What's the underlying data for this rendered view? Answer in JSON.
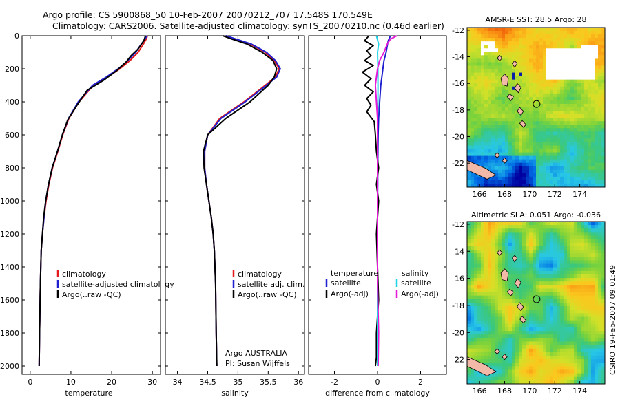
{
  "header": {
    "line1": "Argo profile: CS 5900868_50 10-Feb-2007 20070212_707 17.548S 170.549E",
    "line2": "Climatology: CARS2006. Satellite-adjusted climatology: synTS_20070210.nc (0.46d earlier)"
  },
  "side_note": "CSIRO 19-Feb-2007 09:01:49",
  "colors": {
    "climatology": "#e41a1c",
    "satellite": "#1f1fd0",
    "argo": "#000000",
    "sat_diff_s": "#22d3e6",
    "argo_diff_s": "#e619d8"
  },
  "chart_data": [
    {
      "type": "line",
      "id": "temperature",
      "xlabel": "temperature",
      "xlim": [
        -2,
        32
      ],
      "xticks": [
        0,
        10,
        20,
        30
      ],
      "ylim": [
        2050,
        0
      ],
      "yticks": [
        0,
        200,
        400,
        600,
        800,
        1000,
        1200,
        1400,
        1600,
        1800,
        2000
      ],
      "legend": [
        "climatology",
        "satellite-adjusted climatology",
        "Argo(..raw -QC)"
      ],
      "series": [
        {
          "name": "climatology",
          "x": [
            28.8,
            28.5,
            27.8,
            26.5,
            24.5,
            22.0,
            19.0,
            15.5,
            12.0,
            9.5,
            8.0,
            6.8,
            5.5,
            4.6,
            3.9,
            3.4,
            3.0,
            2.7,
            2.5,
            2.3,
            2.2
          ],
          "y": [
            0,
            20,
            50,
            100,
            150,
            200,
            250,
            300,
            400,
            500,
            600,
            700,
            800,
            900,
            1000,
            1100,
            1200,
            1300,
            1500,
            1800,
            2000
          ]
        },
        {
          "name": "satellite-adjusted climatology",
          "x": [
            28.6,
            28.2,
            27.3,
            25.9,
            24.0,
            21.6,
            18.7,
            15.3,
            11.8,
            9.4,
            7.9,
            6.7,
            5.4,
            4.5,
            3.8,
            3.4,
            3.0,
            2.7,
            2.5,
            2.3,
            2.2
          ],
          "y": [
            0,
            20,
            50,
            100,
            150,
            200,
            250,
            300,
            400,
            500,
            600,
            700,
            800,
            900,
            1000,
            1100,
            1200,
            1300,
            1500,
            1800,
            2000
          ]
        },
        {
          "name": "Argo(..raw -QC)",
          "x": [
            28.3,
            27.9,
            26.5,
            24.8,
            23.5,
            21.3,
            18.0,
            14.0,
            11.5,
            9.2,
            7.9,
            6.7,
            5.4,
            4.5,
            3.8,
            3.3,
            3.0,
            2.7,
            2.5,
            2.3,
            2.2
          ],
          "y": [
            0,
            30,
            80,
            120,
            160,
            210,
            270,
            330,
            420,
            510,
            600,
            700,
            800,
            900,
            1000,
            1100,
            1200,
            1300,
            1500,
            1800,
            2000
          ]
        }
      ]
    },
    {
      "type": "line",
      "id": "salinity",
      "xlabel": "salinity",
      "xlim": [
        33.8,
        36.1
      ],
      "xticks": [
        34,
        34.5,
        35,
        35.5,
        36
      ],
      "ylim": [
        2050,
        0
      ],
      "legend": [
        "climatology",
        "satellite adj. clim.",
        "Argo(..raw -QC)"
      ],
      "note": [
        "Argo AUSTRALIA",
        "PI: Susan Wijffels"
      ],
      "series": [
        {
          "name": "climatology",
          "x": [
            34.8,
            34.95,
            35.2,
            35.45,
            35.6,
            35.68,
            35.62,
            35.45,
            35.1,
            34.7,
            34.5,
            34.45,
            34.45,
            34.48,
            34.52,
            34.56,
            34.59,
            34.61,
            34.63,
            34.64,
            34.65
          ],
          "y": [
            0,
            20,
            50,
            100,
            150,
            200,
            250,
            300,
            400,
            500,
            600,
            700,
            800,
            900,
            1000,
            1100,
            1200,
            1300,
            1500,
            1800,
            2000
          ]
        },
        {
          "name": "satellite adj. clim.",
          "x": [
            34.8,
            34.97,
            35.22,
            35.47,
            35.62,
            35.7,
            35.64,
            35.47,
            35.12,
            34.72,
            34.5,
            34.45,
            34.45,
            34.48,
            34.52,
            34.56,
            34.59,
            34.61,
            34.63,
            34.64,
            34.65
          ],
          "y": [
            0,
            20,
            50,
            100,
            150,
            200,
            250,
            300,
            400,
            500,
            600,
            700,
            800,
            900,
            1000,
            1100,
            1200,
            1300,
            1500,
            1800,
            2000
          ]
        },
        {
          "name": "Argo(..raw -QC)",
          "x": [
            34.75,
            34.9,
            35.15,
            35.4,
            35.58,
            35.64,
            35.6,
            35.5,
            35.2,
            34.8,
            34.5,
            34.43,
            34.44,
            34.48,
            34.52,
            34.56,
            34.59,
            34.61,
            34.63,
            34.64,
            34.65
          ],
          "y": [
            0,
            20,
            50,
            100,
            150,
            200,
            250,
            300,
            400,
            500,
            600,
            700,
            800,
            900,
            1000,
            1100,
            1200,
            1300,
            1500,
            1800,
            2000
          ]
        }
      ]
    },
    {
      "type": "line",
      "id": "difference",
      "xlabel": "difference from climatology",
      "xlim": [
        -3.2,
        3.2
      ],
      "xticks": [
        -2,
        0,
        2
      ],
      "ylim": [
        2050,
        0
      ],
      "legend_temperature_title": "temperature",
      "legend_salinity_title": "salinity",
      "legend_temperature": [
        "satellite",
        "Argo(-adj)"
      ],
      "legend_salinity": [
        "satellite",
        "Argo(-adj)"
      ],
      "series": [
        {
          "name": "temperature satellite",
          "x": [
            0.6,
            0.5,
            0.45,
            0.4,
            0.3,
            0.25,
            0.2,
            0.15,
            0.1,
            0.05,
            0.03,
            0.02,
            0.01,
            0.01,
            0.0,
            0.0,
            0.0,
            0.0,
            0.0,
            0.0,
            0.0
          ],
          "y": [
            0,
            30,
            60,
            100,
            150,
            200,
            250,
            300,
            400,
            500,
            600,
            700,
            800,
            900,
            1000,
            1100,
            1200,
            1300,
            1500,
            1800,
            2000
          ]
        },
        {
          "name": "temperature Argo(-adj)",
          "x": [
            -0.4,
            -0.6,
            -0.2,
            -0.5,
            -0.3,
            -0.6,
            -0.2,
            -0.7,
            -0.3,
            -0.6,
            -0.2,
            -0.5,
            -0.3,
            -0.5,
            -0.15,
            -0.1,
            -0.05,
            0.05,
            -0.05,
            0.05,
            -0.05,
            0.0,
            0.05,
            -0.05,
            -0.05,
            -0.1
          ],
          "y": [
            0,
            30,
            60,
            90,
            120,
            150,
            180,
            220,
            260,
            300,
            340,
            380,
            420,
            460,
            520,
            600,
            700,
            800,
            900,
            1000,
            1200,
            1400,
            1600,
            1800,
            1950,
            2000
          ]
        },
        {
          "name": "salinity satellite",
          "x": [
            -0.05,
            0.05,
            0.0,
            0.02,
            0.02,
            0.02,
            0.0,
            0.0,
            0.0,
            0.0,
            0.0,
            0.0,
            0.0
          ],
          "y": [
            0,
            50,
            100,
            200,
            300,
            400,
            500,
            700,
            900,
            1200,
            1500,
            1800,
            2000
          ]
        },
        {
          "name": "salinity Argo(-adj)",
          "x": [
            0.9,
            0.6,
            0.45,
            0.3,
            0.1,
            0.0,
            -0.05,
            -0.1,
            -0.05,
            0.0,
            0.0,
            0.0,
            0.0,
            0.0,
            0.05,
            0.03
          ],
          "y": [
            0,
            20,
            50,
            100,
            150,
            200,
            250,
            300,
            400,
            500,
            600,
            800,
            1000,
            1500,
            1800,
            2000
          ]
        }
      ]
    },
    {
      "type": "heatmap",
      "id": "sst_map",
      "title": "AMSR-E SST: 28.5 Argo: 28",
      "xlim": [
        165,
        176
      ],
      "ylim": [
        -23.8,
        -11.8
      ],
      "xticks": [
        166,
        168,
        170,
        172,
        174
      ],
      "yticks": [
        -12,
        -14,
        -16,
        -18,
        -20,
        -22
      ],
      "argo_position": [
        170.549,
        -17.548
      ]
    },
    {
      "type": "heatmap",
      "id": "sla_map",
      "title": "Altimetric SLA: 0.051 Argo: -0.036",
      "xlim": [
        165,
        176
      ],
      "ylim": [
        -23.8,
        -11.8
      ],
      "xticks": [
        166,
        168,
        170,
        172,
        174
      ],
      "yticks": [
        -12,
        -14,
        -16,
        -18,
        -20,
        -22
      ],
      "argo_position": [
        170.549,
        -17.548
      ]
    }
  ]
}
